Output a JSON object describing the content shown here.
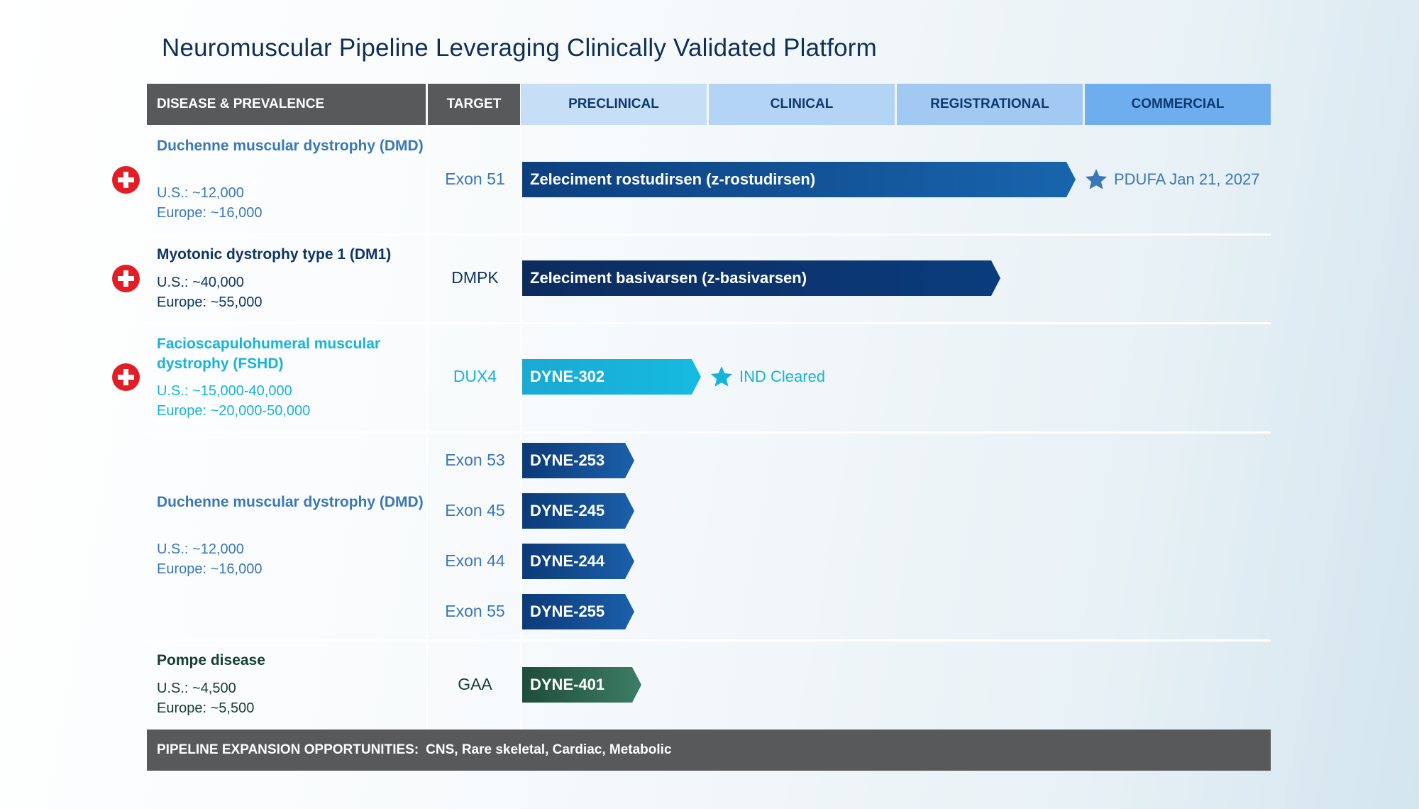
{
  "title": "Neuromuscular Pipeline Leveraging Clinically Validated Platform",
  "header": {
    "disease": "DISEASE & PREVALENCE",
    "target": "TARGET",
    "phases": [
      "PRECLINICAL",
      "CLINICAL",
      "REGISTRATIONAL",
      "COMMERCIAL"
    ]
  },
  "colors": {
    "plus_badge": "#e21d26",
    "header_dark": "#58595b",
    "dmd": "#3a78b5",
    "dm1": "#0f3563",
    "fshd": "#16b4d8",
    "pompe": "#163e2f"
  },
  "rows": [
    {
      "disease": "Duchenne muscular dystrophy (DMD)",
      "us": "U.S.: ~12,000",
      "europe": "Europe: ~16,000",
      "target": "Exon 51",
      "program": "Zeleciment rostudirsen (z-rostudirsen)",
      "stage": "Registrational",
      "milestone": "PDUFA Jan 21, 2027",
      "milestone_icon": "star-icon"
    },
    {
      "disease": "Myotonic dystrophy type 1 (DM1)",
      "us": "U.S.: ~40,000",
      "europe": "Europe: ~55,000",
      "target": "DMPK",
      "program": "Zeleciment basivarsen (z-basivarsen)",
      "stage": "Registrational"
    },
    {
      "disease": "Facioscapulohumeral muscular dystrophy (FSHD)",
      "us": "U.S.: ~15,000-40,000",
      "europe": "Europe: ~20,000-50,000",
      "target": "DUX4",
      "program": "DYNE-302",
      "stage": "Preclinical",
      "milestone": "IND Cleared",
      "milestone_icon": "star-icon"
    },
    {
      "disease": "Duchenne muscular dystrophy (DMD)",
      "us": "U.S.: ~12,000",
      "europe": "Europe: ~16,000",
      "programs": [
        {
          "target": "Exon 53",
          "program": "DYNE-253",
          "stage": "Preclinical"
        },
        {
          "target": "Exon 45",
          "program": "DYNE-245",
          "stage": "Preclinical"
        },
        {
          "target": "Exon 44",
          "program": "DYNE-244",
          "stage": "Preclinical"
        },
        {
          "target": "Exon 55",
          "program": "DYNE-255",
          "stage": "Preclinical"
        }
      ]
    },
    {
      "disease": "Pompe disease",
      "us": "U.S.: ~4,500",
      "europe": "Europe: ~5,500",
      "target": "GAA",
      "program": "DYNE-401",
      "stage": "Preclinical"
    }
  ],
  "footer": {
    "label": "PIPELINE EXPANSION OPPORTUNITIES:",
    "value": "CNS, Rare skeletal, Cardiac, Metabolic"
  }
}
